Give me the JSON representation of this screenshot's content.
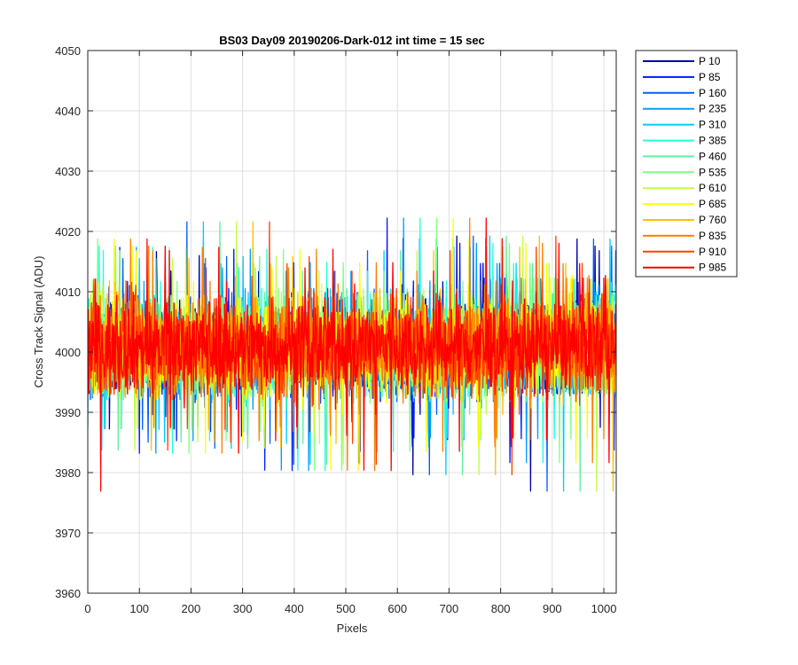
{
  "chart_data": {
    "type": "line",
    "title": "BS03 Day09 20190206-Dark-012 int time = 15 sec",
    "xlabel": "Pixels",
    "ylabel": "Cross Track Signal (ADU)",
    "xlim": [
      0,
      1024
    ],
    "ylim": [
      3960,
      4050
    ],
    "xticks": [
      "0",
      "100",
      "200",
      "300",
      "400",
      "500",
      "600",
      "700",
      "800",
      "900",
      "1000"
    ],
    "yticks": [
      "3960",
      "3970",
      "3980",
      "3990",
      "4000",
      "4010",
      "4020",
      "4030",
      "4040",
      "4050"
    ],
    "grid": true,
    "legend_position": "outside-top-right",
    "series": [
      {
        "name": "P 10",
        "color": "#0000a8",
        "mean": 4001,
        "spread": 8
      },
      {
        "name": "P 85",
        "color": "#0018ff",
        "mean": 4001,
        "spread": 8
      },
      {
        "name": "P 160",
        "color": "#0060ff",
        "mean": 4001,
        "spread": 8
      },
      {
        "name": "P 235",
        "color": "#00a0ff",
        "mean": 4001,
        "spread": 8
      },
      {
        "name": "P 310",
        "color": "#00ccff",
        "mean": 4001,
        "spread": 8
      },
      {
        "name": "P 385",
        "color": "#20ffe0",
        "mean": 4001,
        "spread": 8
      },
      {
        "name": "P 460",
        "color": "#60f0a0",
        "mean": 4001,
        "spread": 8
      },
      {
        "name": "P 535",
        "color": "#80ff80",
        "mean": 4001,
        "spread": 8
      },
      {
        "name": "P 610",
        "color": "#c0ff40",
        "mean": 4001,
        "spread": 8
      },
      {
        "name": "P 685",
        "color": "#ffff00",
        "mean": 4001,
        "spread": 8
      },
      {
        "name": "P 760",
        "color": "#ffc000",
        "mean": 4001,
        "spread": 8
      },
      {
        "name": "P 835",
        "color": "#ff8000",
        "mean": 4001,
        "spread": 8
      },
      {
        "name": "P 910",
        "color": "#ff4000",
        "mean": 4001,
        "spread": 8
      },
      {
        "name": "P 985",
        "color": "#ff0000",
        "mean": 4001,
        "spread": 8
      }
    ]
  }
}
